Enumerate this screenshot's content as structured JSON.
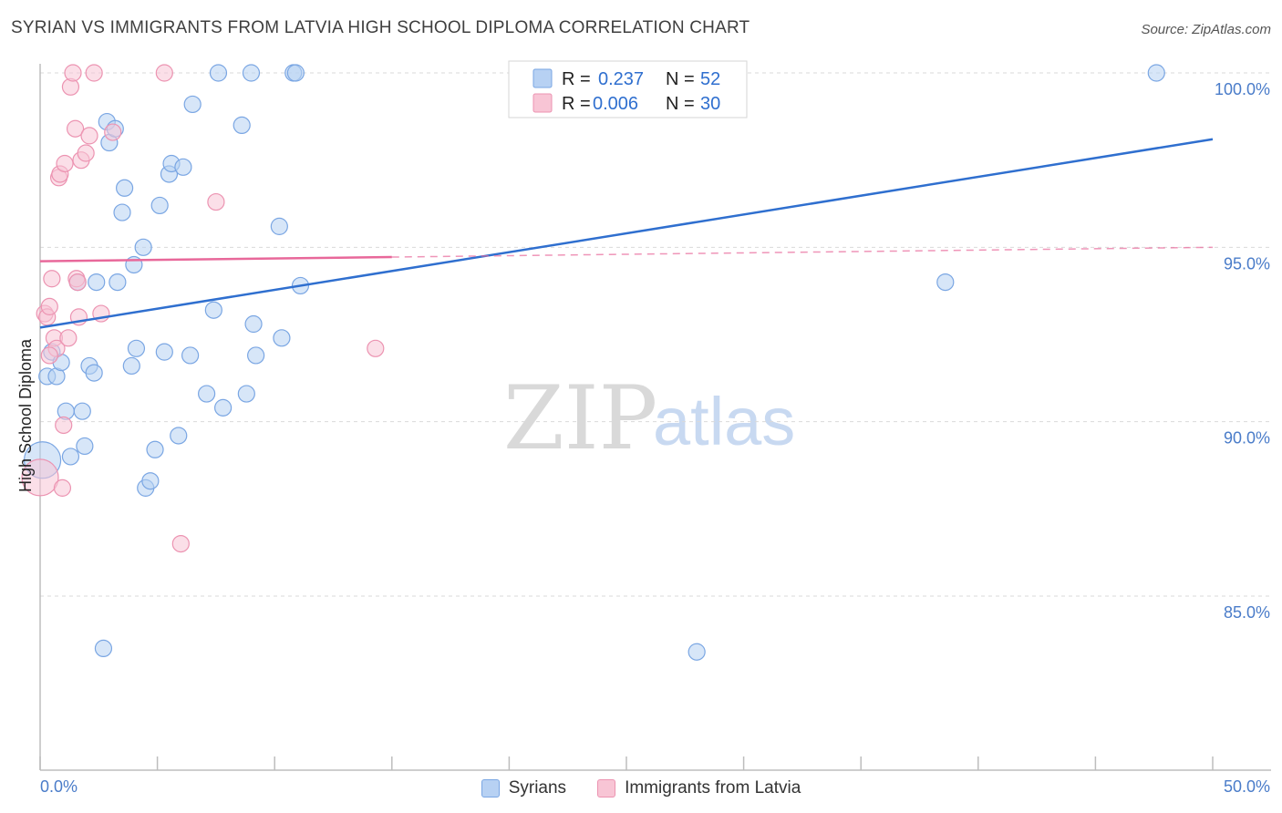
{
  "title": "SYRIAN VS IMMIGRANTS FROM LATVIA HIGH SCHOOL DIPLOMA CORRELATION CHART",
  "source": "Source: ZipAtlas.com",
  "watermark": {
    "part1": "ZIP",
    "part2": "atlas"
  },
  "legend_top": [
    {
      "r_label": "R =",
      "r_value": "0.237",
      "n_label": "N =",
      "n_value": "52"
    },
    {
      "r_label": "R =",
      "r_value": "0.006",
      "n_label": "N =",
      "n_value": "30"
    }
  ],
  "legend_bottom": [
    {
      "label": "Syrians"
    },
    {
      "label": "Immigrants from Latvia"
    }
  ],
  "colors": {
    "blue_fill": "#b7d1f3",
    "blue_stroke": "#7aa6e3",
    "blue_line": "#2f6fcf",
    "pink_fill": "#f8c5d5",
    "pink_stroke": "#ec93b1",
    "pink_line": "#e8689a",
    "grid": "#d9d9d9",
    "tick_label": "#4a7cc9"
  },
  "chart_data": {
    "type": "scatter",
    "title": "SYRIAN VS IMMIGRANTS FROM LATVIA HIGH SCHOOL DIPLOMA CORRELATION CHART",
    "xlabel": "",
    "ylabel": "High School Diploma",
    "xlim": [
      0,
      50
    ],
    "ylim": [
      80,
      100.5
    ],
    "x_tick_labels": [
      "0.0%",
      "50.0%"
    ],
    "y_ticks": [
      100,
      95,
      90,
      85
    ],
    "y_tick_labels": [
      "100.0%",
      "95.0%",
      "90.0%",
      "85.0%"
    ],
    "grid": true,
    "series": [
      {
        "name": "Syrians",
        "R": 0.237,
        "N": 52,
        "trend": {
          "x": [
            0,
            50
          ],
          "y": [
            92.7,
            98.1
          ],
          "style": "solid"
        },
        "points": [
          [
            0.1,
            88.9,
            1
          ],
          [
            0.3,
            91.3,
            0
          ],
          [
            0.5,
            92.0,
            0
          ],
          [
            0.7,
            91.3,
            0
          ],
          [
            0.9,
            91.7,
            0
          ],
          [
            1.1,
            90.3,
            0
          ],
          [
            1.3,
            89.0,
            0
          ],
          [
            1.6,
            94.0,
            0
          ],
          [
            1.8,
            90.3,
            0
          ],
          [
            1.9,
            89.3,
            0
          ],
          [
            2.1,
            91.6,
            0
          ],
          [
            2.3,
            91.4,
            0
          ],
          [
            2.4,
            94.0,
            0
          ],
          [
            2.7,
            83.5,
            0
          ],
          [
            2.85,
            98.6,
            0
          ],
          [
            2.95,
            98.0,
            0
          ],
          [
            3.2,
            98.4,
            0
          ],
          [
            3.3,
            94.0,
            0
          ],
          [
            3.5,
            96.0,
            0
          ],
          [
            3.6,
            96.7,
            0
          ],
          [
            3.9,
            91.6,
            0
          ],
          [
            4.0,
            94.5,
            0
          ],
          [
            4.1,
            92.1,
            0
          ],
          [
            4.4,
            95.0,
            0
          ],
          [
            4.5,
            88.1,
            0
          ],
          [
            4.7,
            88.3,
            0
          ],
          [
            4.9,
            89.2,
            0
          ],
          [
            5.1,
            96.2,
            0
          ],
          [
            5.3,
            92.0,
            0
          ],
          [
            5.5,
            97.1,
            0
          ],
          [
            5.6,
            97.4,
            0
          ],
          [
            5.9,
            89.6,
            0
          ],
          [
            6.1,
            97.3,
            0
          ],
          [
            6.4,
            91.9,
            0
          ],
          [
            6.5,
            99.1,
            0
          ],
          [
            7.1,
            90.8,
            0
          ],
          [
            7.4,
            93.2,
            0
          ],
          [
            7.6,
            100.0,
            0
          ],
          [
            7.8,
            90.4,
            0
          ],
          [
            8.6,
            98.5,
            0
          ],
          [
            8.8,
            90.8,
            0
          ],
          [
            9.0,
            100.0,
            0
          ],
          [
            9.1,
            92.8,
            0
          ],
          [
            9.2,
            91.9,
            0
          ],
          [
            10.2,
            95.6,
            0
          ],
          [
            10.3,
            92.4,
            0
          ],
          [
            10.8,
            100.0,
            0
          ],
          [
            10.9,
            100.0,
            0
          ],
          [
            11.1,
            93.9,
            0
          ],
          [
            28.0,
            83.4,
            0
          ],
          [
            38.6,
            94.0,
            0
          ],
          [
            47.6,
            100.0,
            0
          ]
        ]
      },
      {
        "name": "Immigrants from Latvia",
        "R": 0.006,
        "N": 30,
        "trend": {
          "x": [
            0,
            50
          ],
          "y": [
            94.6,
            95.0
          ],
          "style": "solid_then_dashed",
          "solid_until_x": 15
        },
        "points": [
          [
            0.0,
            88.4,
            1
          ],
          [
            0.2,
            93.1,
            0
          ],
          [
            0.3,
            93.0,
            0
          ],
          [
            0.4,
            93.3,
            0
          ],
          [
            0.5,
            94.1,
            0
          ],
          [
            0.6,
            92.4,
            0
          ],
          [
            0.7,
            92.1,
            0
          ],
          [
            0.8,
            97.0,
            0
          ],
          [
            0.85,
            97.1,
            0
          ],
          [
            0.95,
            88.1,
            0
          ],
          [
            1.0,
            89.9,
            0
          ],
          [
            1.05,
            97.4,
            0
          ],
          [
            1.2,
            92.4,
            0
          ],
          [
            1.3,
            99.6,
            0
          ],
          [
            1.4,
            100.0,
            0
          ],
          [
            1.5,
            98.4,
            0
          ],
          [
            1.55,
            94.1,
            0
          ],
          [
            1.6,
            94.0,
            0
          ],
          [
            1.65,
            93.0,
            0
          ],
          [
            1.75,
            97.5,
            0
          ],
          [
            1.95,
            97.7,
            0
          ],
          [
            2.1,
            98.2,
            0
          ],
          [
            2.3,
            100.0,
            0
          ],
          [
            2.6,
            93.1,
            0
          ],
          [
            3.1,
            98.3,
            0
          ],
          [
            5.3,
            100.0,
            0
          ],
          [
            6.0,
            86.5,
            0
          ],
          [
            7.5,
            96.3,
            0
          ],
          [
            14.3,
            92.1,
            0
          ],
          [
            0.4,
            91.9,
            0
          ]
        ]
      }
    ]
  }
}
